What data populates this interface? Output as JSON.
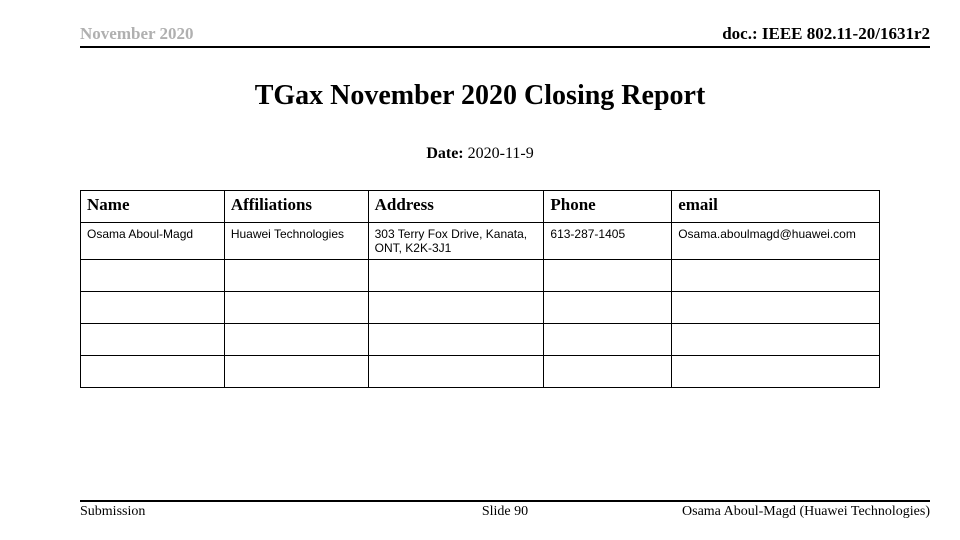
{
  "header": {
    "left": "November 2020",
    "right": "doc.: IEEE 802.11-20/1631r2"
  },
  "title": "TGax November 2020 Closing Report",
  "date": {
    "label": "Date:",
    "value": "2020-11-9"
  },
  "table": {
    "columns": [
      "Name",
      "Affiliations",
      "Address",
      "Phone",
      "email"
    ],
    "column_widths_pct": [
      18,
      18,
      22,
      16,
      26
    ],
    "header_fontsize": 17,
    "cell_fontsize": 12,
    "border_color": "#000000",
    "rows": [
      {
        "name": "Osama Aboul-Magd",
        "affiliations": "Huawei Technologies",
        "address": "303 Terry Fox Drive, Kanata, ONT, K2K-3J1",
        "phone": "613-287-1405",
        "email": "Osama.aboulmagd@huawei.com"
      },
      {
        "name": "",
        "affiliations": "",
        "address": "",
        "phone": "",
        "email": ""
      },
      {
        "name": "",
        "affiliations": "",
        "address": "",
        "phone": "",
        "email": ""
      },
      {
        "name": "",
        "affiliations": "",
        "address": "",
        "phone": "",
        "email": ""
      },
      {
        "name": "",
        "affiliations": "",
        "address": "",
        "phone": "",
        "email": ""
      }
    ]
  },
  "footer": {
    "left": "Submission",
    "center": "Slide 90",
    "right": "Osama Aboul-Magd (Huawei Technologies)"
  },
  "colors": {
    "background": "#ffffff",
    "header_left_text": "#b0b0b0",
    "text": "#000000",
    "rule": "#000000"
  },
  "typography": {
    "body_font": "Times New Roman",
    "cell_font": "Arial",
    "title_fontsize": 28,
    "header_fontsize": 17,
    "date_fontsize": 16,
    "footer_fontsize": 14
  }
}
